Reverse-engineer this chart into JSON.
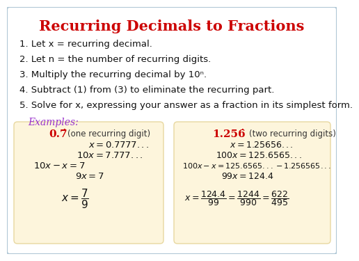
{
  "title": "Recurring Decimals to Fractions",
  "title_color": "#cc0000",
  "background_color": "#ffffff",
  "border_color": "#aec6d4",
  "box_color": "#fdf5dc",
  "box_edge_color": "#e8d8a0",
  "steps": [
    "1. Let x = recurring decimal.",
    "2. Let n = the number of recurring digits.",
    "3. Multiply the recurring decimal by 10ⁿ.",
    "4. Subtract (1) from (3) to eliminate the recurring part.",
    "5. Solve for x, expressing your answer as a fraction in its simplest form."
  ],
  "examples_label": "Examples:",
  "step_fontsize": 9.5,
  "title_fontsize": 15
}
